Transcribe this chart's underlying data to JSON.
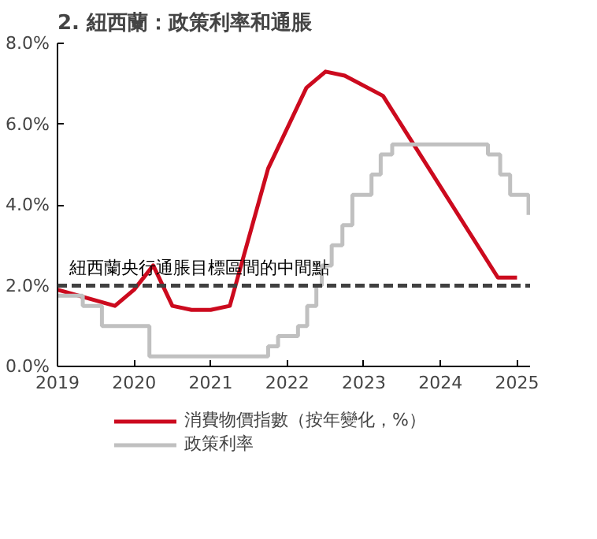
{
  "chart_data": {
    "type": "line",
    "title": "2. 紐西蘭：政策利率和通脹",
    "xlim": [
      2019,
      2025.17
    ],
    "xticks": [
      2019,
      2020,
      2021,
      2022,
      2023,
      2024,
      2025
    ],
    "ylim": [
      0,
      8
    ],
    "yticks": [
      {
        "value": 0,
        "label": "0.0%"
      },
      {
        "value": 2,
        "label": "2.0%"
      },
      {
        "value": 4,
        "label": "4.0%"
      },
      {
        "value": 6,
        "label": "6.0%"
      },
      {
        "value": 8,
        "label": "8.0%"
      }
    ],
    "grid": false,
    "legend": "bottom",
    "series": [
      {
        "name": "消費物價指數（按年變化，%）",
        "color": "#cc0a1e",
        "x": [
          2019.0,
          2019.75,
          2020.0,
          2020.25,
          2020.5,
          2020.75,
          2021.0,
          2021.25,
          2021.75,
          2022.25,
          2022.5,
          2022.75,
          2023.25,
          2024.75,
          2025.0
        ],
        "values": [
          1.9,
          1.5,
          1.9,
          2.5,
          1.5,
          1.4,
          1.4,
          1.5,
          4.9,
          6.9,
          7.3,
          7.2,
          6.7,
          2.2,
          2.2
        ]
      },
      {
        "name": "政策利率",
        "color": "#c0c0c0",
        "type": "step",
        "x": [
          2019.0,
          2019.33,
          2019.58,
          2020.2,
          2021.75,
          2021.88,
          2022.14,
          2022.26,
          2022.38,
          2022.45,
          2022.58,
          2022.72,
          2022.85,
          2023.1,
          2023.22,
          2023.37,
          2024.62,
          2024.78,
          2024.91,
          2025.15
        ],
        "values": [
          1.75,
          1.5,
          1.0,
          0.25,
          0.5,
          0.75,
          1.0,
          1.5,
          2.0,
          2.5,
          3.0,
          3.5,
          4.25,
          4.75,
          5.25,
          5.5,
          5.25,
          4.75,
          4.25,
          3.75
        ]
      }
    ],
    "ref_lines": [
      {
        "axis": "y",
        "value": 2,
        "label": "紐西蘭央行通脹目標區間的中間點",
        "color": "#404040",
        "line_style": "dashed"
      }
    ]
  }
}
